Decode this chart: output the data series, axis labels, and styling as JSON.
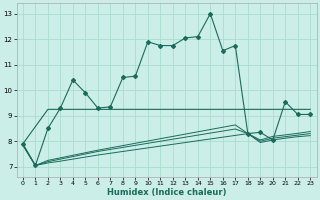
{
  "xlabel": "Humidex (Indice chaleur)",
  "bg_color": "#cceee8",
  "grid_color": "#aaddcc",
  "line_color": "#1a6b5a",
  "xlim": [
    -0.5,
    23.5
  ],
  "ylim": [
    6.6,
    13.4
  ],
  "yticks": [
    7,
    8,
    9,
    10,
    11,
    12,
    13
  ],
  "xticks": [
    0,
    1,
    2,
    3,
    4,
    5,
    6,
    7,
    8,
    9,
    10,
    11,
    12,
    13,
    14,
    15,
    16,
    17,
    18,
    19,
    20,
    21,
    22,
    23
  ],
  "series1_x": [
    0,
    1,
    2,
    3,
    4,
    5,
    6,
    7,
    8,
    9,
    10,
    11,
    12,
    13,
    14,
    15,
    16,
    17,
    18,
    19,
    20,
    21,
    22,
    23
  ],
  "series1_y": [
    7.9,
    7.05,
    8.5,
    9.3,
    10.4,
    9.9,
    9.3,
    9.35,
    10.5,
    10.55,
    11.9,
    11.75,
    11.75,
    12.05,
    12.1,
    13.0,
    11.55,
    11.75,
    8.3,
    8.35,
    8.05,
    9.55,
    9.05,
    9.05
  ],
  "series2_x": [
    0,
    2,
    3,
    4,
    5,
    6,
    23
  ],
  "series2_y": [
    7.9,
    9.25,
    9.25,
    9.25,
    9.25,
    9.25,
    9.25
  ],
  "series3_x": [
    0,
    1,
    2,
    3,
    4,
    5,
    6,
    7,
    8,
    9,
    10,
    11,
    12,
    13,
    14,
    15,
    16,
    17,
    18,
    19,
    20,
    21,
    22,
    23
  ],
  "series3_y": [
    7.85,
    7.05,
    7.15,
    7.22,
    7.3,
    7.38,
    7.46,
    7.53,
    7.6,
    7.67,
    7.74,
    7.81,
    7.88,
    7.95,
    8.02,
    8.09,
    8.16,
    8.23,
    8.3,
    7.95,
    8.05,
    8.12,
    8.18,
    8.22
  ],
  "series4_x": [
    0,
    1,
    2,
    3,
    4,
    5,
    6,
    7,
    8,
    9,
    10,
    11,
    12,
    13,
    14,
    15,
    16,
    17,
    18,
    19,
    20,
    21,
    22,
    23
  ],
  "series4_y": [
    7.85,
    7.05,
    7.2,
    7.3,
    7.4,
    7.5,
    7.6,
    7.68,
    7.76,
    7.84,
    7.92,
    8.0,
    8.08,
    8.16,
    8.24,
    8.32,
    8.4,
    8.48,
    8.3,
    8.0,
    8.12,
    8.18,
    8.24,
    8.3
  ],
  "series5_x": [
    0,
    1,
    2,
    3,
    4,
    5,
    6,
    7,
    8,
    9,
    10,
    11,
    12,
    13,
    14,
    15,
    16,
    17,
    18,
    19,
    20,
    21,
    22,
    23
  ],
  "series5_y": [
    7.85,
    7.05,
    7.25,
    7.35,
    7.45,
    7.55,
    7.65,
    7.74,
    7.83,
    7.92,
    8.01,
    8.1,
    8.19,
    8.28,
    8.37,
    8.46,
    8.55,
    8.64,
    8.3,
    8.05,
    8.19,
    8.25,
    8.31,
    8.38
  ]
}
